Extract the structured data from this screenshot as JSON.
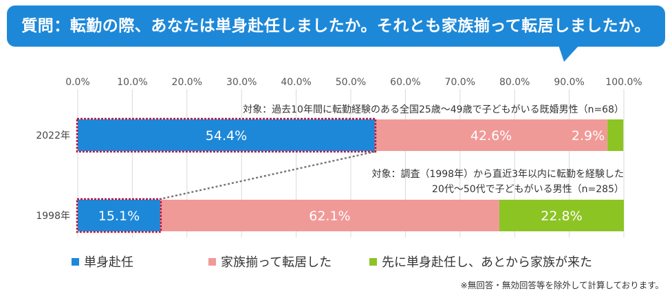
{
  "header": {
    "question": "質問：転勤の際、あなたは単身赴任しましたか。それとも家族揃って転居しましたか。"
  },
  "chart_data": {
    "type": "bar",
    "orientation": "horizontal",
    "stacked": true,
    "xlim": [
      0,
      100
    ],
    "x_ticks": [
      "0.0%",
      "10.0%",
      "20.0%",
      "30.0%",
      "40.0%",
      "50.0%",
      "60.0%",
      "70.0%",
      "80.0%",
      "90.0%",
      "100.0%"
    ],
    "grid": true,
    "legend_position": "bottom",
    "categories": [
      "2022年",
      "1998年"
    ],
    "series": [
      {
        "name": "単身赴任",
        "color": "#1e88d8",
        "values": [
          54.4,
          15.1
        ],
        "labels": [
          "54.4%",
          "15.1%"
        ]
      },
      {
        "name": "家族揃って転居した",
        "color": "#f09a98",
        "values": [
          42.6,
          62.1
        ],
        "labels": [
          "42.6%",
          "62.1%"
        ]
      },
      {
        "name": "先に単身赴任し、あとから家族が来た",
        "color": "#8cc424",
        "values": [
          2.9,
          22.8
        ],
        "labels": [
          "2.9%",
          "22.8%"
        ]
      }
    ],
    "annotations": {
      "target_2022": "対象：過去10年間に転勤経験のある全国25歳～49歳で子どもがいる既婚男性（n=68）",
      "target_1998_line1": "対象：調査（1998年）から直近3年以内に転勤を経験した",
      "target_1998_line2": "20代～50代で子どもがいる男性（n=285）"
    }
  },
  "footer": {
    "note": "※無回答・無効回答等を除外して計算しております。"
  }
}
